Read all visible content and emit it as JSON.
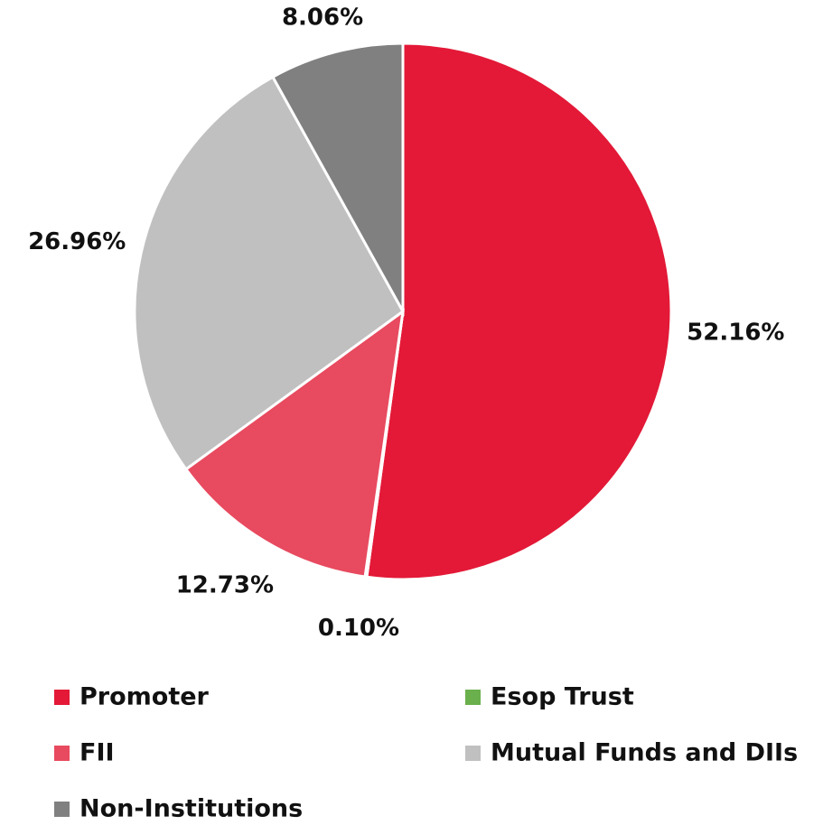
{
  "chart_data": {
    "type": "pie",
    "categories": [
      "Promoter",
      "Esop Trust",
      "FII",
      "Mutual Funds and DIIs",
      "Non-Institutions"
    ],
    "values": [
      52.16,
      0.1,
      12.73,
      26.96,
      8.06
    ],
    "value_labels": [
      "52.16%",
      "0.10%",
      "12.73%",
      "26.96%",
      "8.06%"
    ],
    "colors": [
      "#e31937",
      "#6ab04c",
      "#e84a5f",
      "#c0c0c0",
      "#808080"
    ]
  }
}
